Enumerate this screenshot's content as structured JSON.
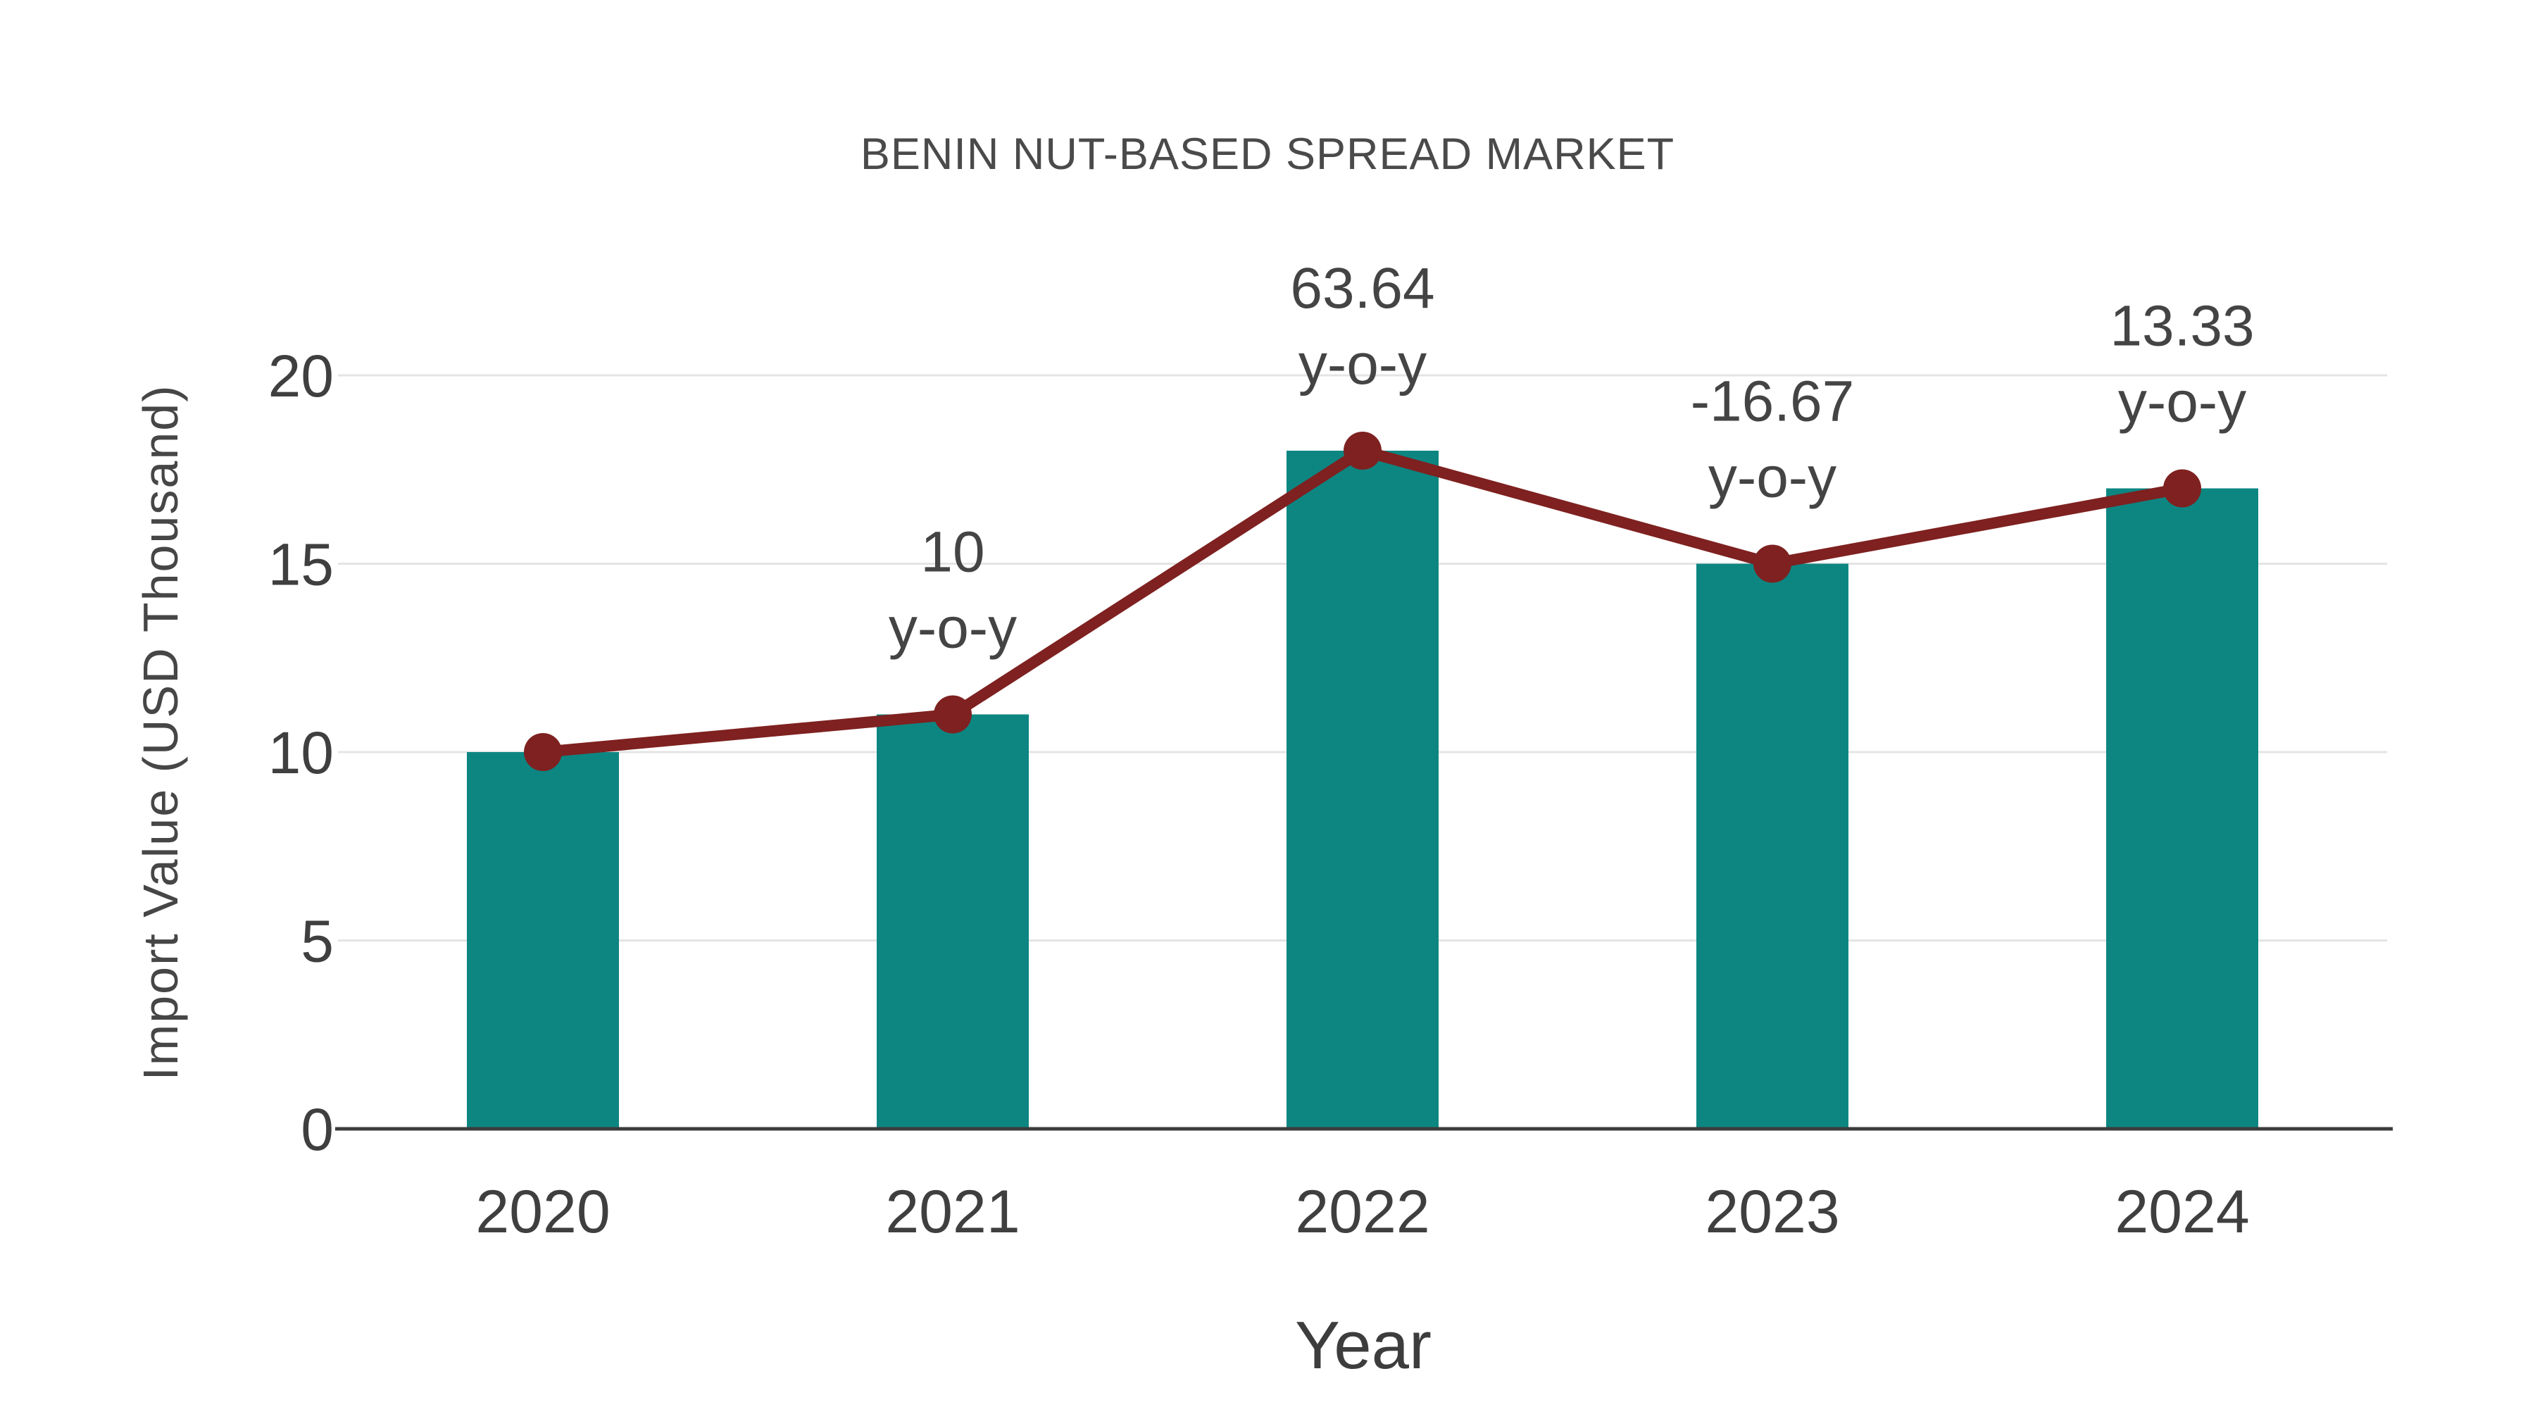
{
  "chart_data": {
    "type": "bar",
    "title": "BENIN NUT-BASED SPREAD MARKET",
    "xlabel": "Year",
    "ylabel": "Import Value (USD Thousand)",
    "categories": [
      "2020",
      "2021",
      "2022",
      "2023",
      "2024"
    ],
    "series": [
      {
        "name": "import-value-bars",
        "type": "bar",
        "values": [
          10,
          11,
          18,
          15,
          17
        ],
        "color": "#0d8682"
      },
      {
        "name": "yoy-trend-line",
        "type": "line",
        "values": [
          10,
          11,
          18,
          15,
          17
        ],
        "color": "#7e2120"
      }
    ],
    "annotations": [
      {
        "category": "2021",
        "line1": "10",
        "line2": "y-o-y"
      },
      {
        "category": "2022",
        "line1": "63.64",
        "line2": "y-o-y"
      },
      {
        "category": "2023",
        "line1": "-16.67",
        "line2": "y-o-y"
      },
      {
        "category": "2024",
        "line1": "13.33",
        "line2": "y-o-y"
      }
    ],
    "yticks": [
      0,
      5,
      10,
      15,
      20
    ],
    "ylim": [
      0,
      20
    ],
    "grid": true,
    "legend_position": "none",
    "colors": {
      "bar": "#0d8682",
      "line": "#7e2120",
      "marker": "#7e2120",
      "text": "#444444",
      "grid": "#e4e4e4",
      "axis": "#3c3c3c",
      "background": "#ffffff"
    }
  }
}
